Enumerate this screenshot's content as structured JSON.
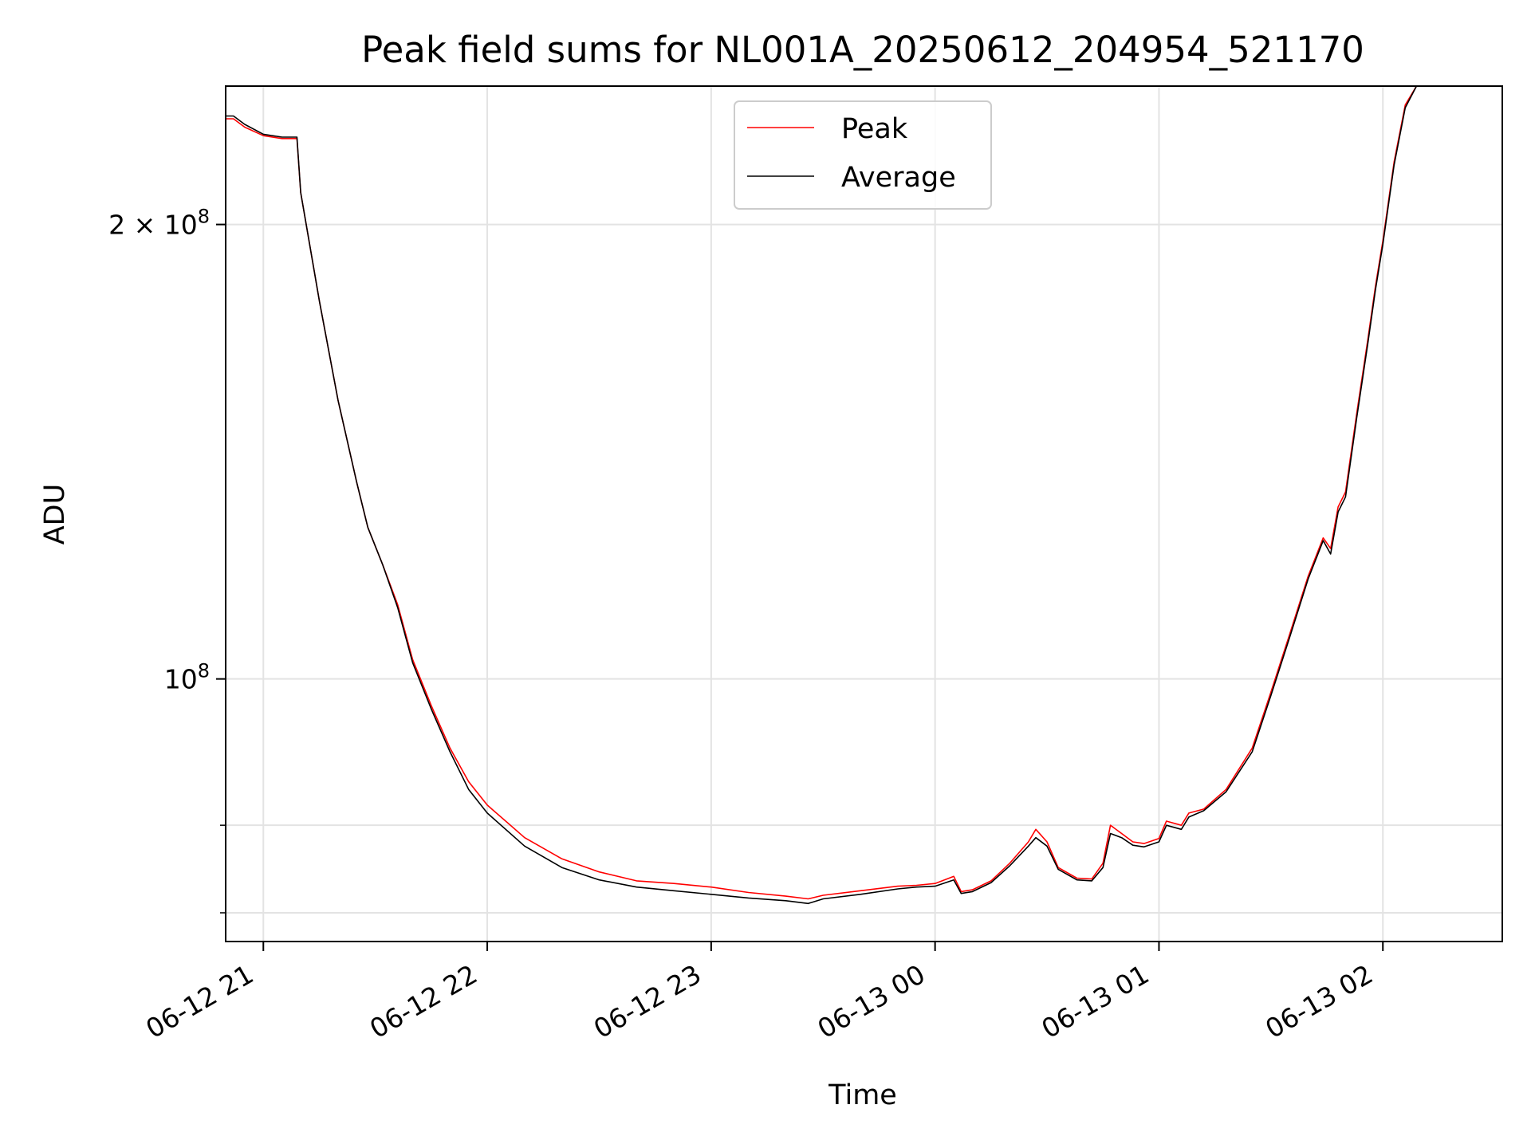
{
  "chart_data": {
    "type": "line",
    "title": "Peak field sums for NL001A_20250612_204954_521170",
    "xlabel": "Time",
    "ylabel": "ADU",
    "yscale": "log",
    "grid": true,
    "legend_position": "top-center",
    "xlim": [
      "2025-06-12 20:49:54",
      "2025-06-13 02:32:00"
    ],
    "ylim": [
      67000000,
      247000000
    ],
    "x_ticks": [
      {
        "value": "2025-06-12 21:00",
        "label": "06-12 21"
      },
      {
        "value": "2025-06-12 22:00",
        "label": "06-12 22"
      },
      {
        "value": "2025-06-12 23:00",
        "label": "06-12 23"
      },
      {
        "value": "2025-06-13 00:00",
        "label": "06-13 00"
      },
      {
        "value": "2025-06-13 01:00",
        "label": "06-13 01"
      },
      {
        "value": "2025-06-13 02:00",
        "label": "06-13 02"
      }
    ],
    "y_major_ticks": [
      {
        "value": 100000000,
        "label_base": "10",
        "label_exp": "8",
        "label_mult": ""
      },
      {
        "value": 200000000,
        "label_base": "10",
        "label_exp": "8",
        "label_mult": "2 × "
      }
    ],
    "y_minor_ticks": [
      70000000,
      80000000
    ],
    "series": [
      {
        "name": "Peak",
        "color": "#ff0000",
        "points": [
          [
            "2025-06-12 20:49:54",
            235000000
          ],
          [
            "2025-06-12 20:52:00",
            235000000
          ],
          [
            "2025-06-12 20:55:00",
            232000000
          ],
          [
            "2025-06-12 21:00:00",
            229000000
          ],
          [
            "2025-06-12 21:05:00",
            228000000
          ],
          [
            "2025-06-12 21:09:00",
            228000000
          ],
          [
            "2025-06-12 21:10:00",
            210000000
          ],
          [
            "2025-06-12 21:15:00",
            178000000
          ],
          [
            "2025-06-12 21:20:00",
            153000000
          ],
          [
            "2025-06-12 21:25:00",
            135000000
          ],
          [
            "2025-06-12 21:28:00",
            126000000
          ],
          [
            "2025-06-12 21:32:00",
            119000000
          ],
          [
            "2025-06-12 21:36:00",
            112000000
          ],
          [
            "2025-06-12 21:40:00",
            103000000
          ],
          [
            "2025-06-12 21:45:00",
            96000000
          ],
          [
            "2025-06-12 21:50:00",
            90000000
          ],
          [
            "2025-06-12 21:55:00",
            85500000
          ],
          [
            "2025-06-12 22:00:00",
            82500000
          ],
          [
            "2025-06-12 22:10:00",
            78500000
          ],
          [
            "2025-06-12 22:20:00",
            76000000
          ],
          [
            "2025-06-12 22:30:00",
            74500000
          ],
          [
            "2025-06-12 22:40:00",
            73500000
          ],
          [
            "2025-06-12 22:50:00",
            73200000
          ],
          [
            "2025-06-12 23:00:00",
            72800000
          ],
          [
            "2025-06-12 23:10:00",
            72200000
          ],
          [
            "2025-06-12 23:20:00",
            71800000
          ],
          [
            "2025-06-12 23:26:00",
            71500000
          ],
          [
            "2025-06-12 23:30:00",
            71900000
          ],
          [
            "2025-06-12 23:40:00",
            72400000
          ],
          [
            "2025-06-12 23:50:00",
            72900000
          ],
          [
            "2025-06-12 23:55:00",
            73000000
          ],
          [
            "2025-06-13 00:00:00",
            73200000
          ],
          [
            "2025-06-13 00:05:00",
            74000000
          ],
          [
            "2025-06-13 00:07:00",
            72300000
          ],
          [
            "2025-06-13 00:10:00",
            72500000
          ],
          [
            "2025-06-13 00:15:00",
            73500000
          ],
          [
            "2025-06-13 00:20:00",
            75500000
          ],
          [
            "2025-06-13 00:25:00",
            78000000
          ],
          [
            "2025-06-13 00:27:00",
            79500000
          ],
          [
            "2025-06-13 00:30:00",
            78000000
          ],
          [
            "2025-06-13 00:33:00",
            75000000
          ],
          [
            "2025-06-13 00:38:00",
            73800000
          ],
          [
            "2025-06-13 00:42:00",
            73700000
          ],
          [
            "2025-06-13 00:45:00",
            75500000
          ],
          [
            "2025-06-13 00:47:00",
            80000000
          ],
          [
            "2025-06-13 00:50:00",
            79000000
          ],
          [
            "2025-06-13 00:53:00",
            78000000
          ],
          [
            "2025-06-13 00:56:00",
            77800000
          ],
          [
            "2025-06-13 01:00:00",
            78400000
          ],
          [
            "2025-06-13 01:02:00",
            80500000
          ],
          [
            "2025-06-13 01:06:00",
            80000000
          ],
          [
            "2025-06-13 01:08:00",
            81500000
          ],
          [
            "2025-06-13 01:12:00",
            82000000
          ],
          [
            "2025-06-13 01:18:00",
            84500000
          ],
          [
            "2025-06-13 01:25:00",
            90000000
          ],
          [
            "2025-06-13 01:30:00",
            98000000
          ],
          [
            "2025-06-13 01:35:00",
            107000000
          ],
          [
            "2025-06-13 01:40:00",
            117000000
          ],
          [
            "2025-06-13 01:44:00",
            124000000
          ],
          [
            "2025-06-13 01:46:00",
            122000000
          ],
          [
            "2025-06-13 01:48:00",
            130000000
          ],
          [
            "2025-06-13 01:50:00",
            133000000
          ],
          [
            "2025-06-13 01:53:00",
            150000000
          ],
          [
            "2025-06-13 01:56:00",
            168000000
          ],
          [
            "2025-06-13 01:58:00",
            182000000
          ],
          [
            "2025-06-13 02:00:00",
            195000000
          ],
          [
            "2025-06-13 02:03:00",
            220000000
          ],
          [
            "2025-06-13 02:06:00",
            240000000
          ],
          [
            "2025-06-13 02:09:00",
            247000000
          ],
          [
            "2025-06-13 02:10:00",
            247000000
          ]
        ]
      },
      {
        "name": "Average",
        "color": "#000000",
        "points": [
          [
            "2025-06-12 20:49:54",
            236000000
          ],
          [
            "2025-06-12 20:52:00",
            236000000
          ],
          [
            "2025-06-12 20:55:00",
            233000000
          ],
          [
            "2025-06-12 21:00:00",
            229500000
          ],
          [
            "2025-06-12 21:05:00",
            228500000
          ],
          [
            "2025-06-12 21:09:00",
            228500000
          ],
          [
            "2025-06-12 21:10:00",
            210000000
          ],
          [
            "2025-06-12 21:15:00",
            178000000
          ],
          [
            "2025-06-12 21:20:00",
            153000000
          ],
          [
            "2025-06-12 21:25:00",
            135000000
          ],
          [
            "2025-06-12 21:28:00",
            126000000
          ],
          [
            "2025-06-12 21:32:00",
            119000000
          ],
          [
            "2025-06-12 21:36:00",
            111500000
          ],
          [
            "2025-06-12 21:40:00",
            102500000
          ],
          [
            "2025-06-12 21:45:00",
            95500000
          ],
          [
            "2025-06-12 21:50:00",
            89500000
          ],
          [
            "2025-06-12 21:55:00",
            84500000
          ],
          [
            "2025-06-12 22:00:00",
            81500000
          ],
          [
            "2025-06-12 22:10:00",
            77500000
          ],
          [
            "2025-06-12 22:20:00",
            75000000
          ],
          [
            "2025-06-12 22:30:00",
            73600000
          ],
          [
            "2025-06-12 22:40:00",
            72800000
          ],
          [
            "2025-06-12 22:50:00",
            72400000
          ],
          [
            "2025-06-12 23:00:00",
            72000000
          ],
          [
            "2025-06-12 23:10:00",
            71600000
          ],
          [
            "2025-06-12 23:20:00",
            71300000
          ],
          [
            "2025-06-12 23:26:00",
            71000000
          ],
          [
            "2025-06-12 23:30:00",
            71500000
          ],
          [
            "2025-06-12 23:40:00",
            72000000
          ],
          [
            "2025-06-12 23:50:00",
            72600000
          ],
          [
            "2025-06-12 23:55:00",
            72800000
          ],
          [
            "2025-06-13 00:00:00",
            72900000
          ],
          [
            "2025-06-13 00:05:00",
            73600000
          ],
          [
            "2025-06-13 00:07:00",
            72100000
          ],
          [
            "2025-06-13 00:10:00",
            72300000
          ],
          [
            "2025-06-13 00:15:00",
            73300000
          ],
          [
            "2025-06-13 00:20:00",
            75200000
          ],
          [
            "2025-06-13 00:25:00",
            77500000
          ],
          [
            "2025-06-13 00:27:00",
            78500000
          ],
          [
            "2025-06-13 00:30:00",
            77500000
          ],
          [
            "2025-06-13 00:33:00",
            74800000
          ],
          [
            "2025-06-13 00:38:00",
            73600000
          ],
          [
            "2025-06-13 00:42:00",
            73500000
          ],
          [
            "2025-06-13 00:45:00",
            75000000
          ],
          [
            "2025-06-13 00:47:00",
            79000000
          ],
          [
            "2025-06-13 00:50:00",
            78500000
          ],
          [
            "2025-06-13 00:53:00",
            77600000
          ],
          [
            "2025-06-13 00:56:00",
            77400000
          ],
          [
            "2025-06-13 01:00:00",
            78000000
          ],
          [
            "2025-06-13 01:02:00",
            80000000
          ],
          [
            "2025-06-13 01:06:00",
            79500000
          ],
          [
            "2025-06-13 01:08:00",
            81000000
          ],
          [
            "2025-06-13 01:12:00",
            81800000
          ],
          [
            "2025-06-13 01:18:00",
            84200000
          ],
          [
            "2025-06-13 01:25:00",
            89500000
          ],
          [
            "2025-06-13 01:30:00",
            97500000
          ],
          [
            "2025-06-13 01:35:00",
            106500000
          ],
          [
            "2025-06-13 01:40:00",
            116500000
          ],
          [
            "2025-06-13 01:44:00",
            123500000
          ],
          [
            "2025-06-13 01:46:00",
            121000000
          ],
          [
            "2025-06-13 01:48:00",
            129000000
          ],
          [
            "2025-06-13 01:50:00",
            132000000
          ],
          [
            "2025-06-13 01:53:00",
            149000000
          ],
          [
            "2025-06-13 01:56:00",
            167000000
          ],
          [
            "2025-06-13 01:58:00",
            181000000
          ],
          [
            "2025-06-13 02:00:00",
            194000000
          ],
          [
            "2025-06-13 02:03:00",
            219000000
          ],
          [
            "2025-06-13 02:06:00",
            239000000
          ],
          [
            "2025-06-13 02:09:00",
            247000000
          ],
          [
            "2025-06-13 02:10:00",
            247000000
          ]
        ]
      }
    ]
  }
}
